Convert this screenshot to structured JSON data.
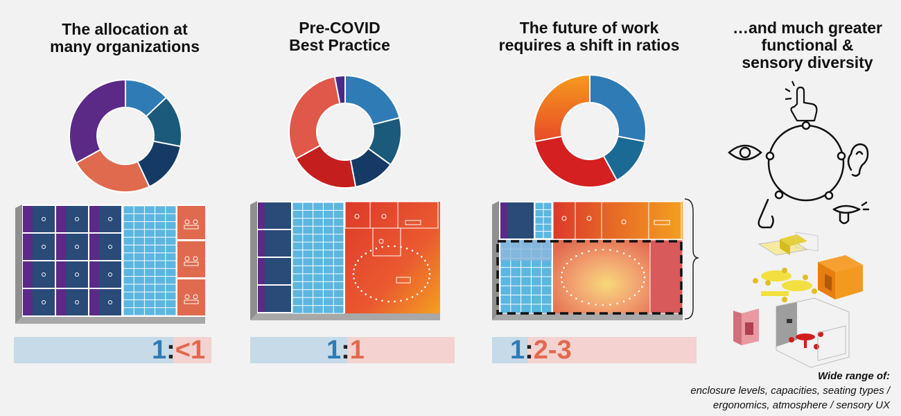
{
  "panels": [
    {
      "title": "The allocation at\nmany organizations",
      "ratio": {
        "left": "1",
        "sep": ":",
        "right": "<1"
      },
      "donut": [
        {
          "value": 13,
          "color": "#2f7bb5"
        },
        {
          "value": 15,
          "color": "#1b5a7a"
        },
        {
          "value": 15,
          "color": "#163a66"
        },
        {
          "value": 24,
          "color": "#e06a4e"
        },
        {
          "value": 33,
          "color": "#5b2a86"
        }
      ]
    },
    {
      "title": "Pre-COVID\nBest Practice",
      "ratio": {
        "left": "1",
        "sep": ":",
        "right": "1"
      },
      "donut": [
        {
          "value": 21,
          "color": "#2f7bb5"
        },
        {
          "value": 14,
          "color": "#1b5a7a"
        },
        {
          "value": 12,
          "color": "#163a66"
        },
        {
          "value": 20,
          "color": "#c41e1e"
        },
        {
          "value": 30,
          "color": "#e0584a"
        },
        {
          "value": 3,
          "color": "#4a2a86"
        }
      ]
    },
    {
      "title": "The future of work\nrequires a shift in ratios",
      "ratio": {
        "left": "1",
        "sep": ":",
        "right": "2-3"
      },
      "donut": [
        {
          "value": 28,
          "color": "#2f7bb5"
        },
        {
          "value": 14,
          "color": "#1b6a96"
        },
        {
          "value": 30,
          "color": "#d42020"
        },
        {
          "value": 28,
          "color": "#f39a1e"
        }
      ]
    }
  ],
  "diversity": {
    "title": "…and much greater\nfunctional &\nsensory diversity",
    "caption_head": "Wide range of:",
    "caption_line1": "enclosure levels, capacities, seating types /",
    "caption_line2": "ergonomics, atmosphere / sensory UX"
  },
  "colors": {
    "purple": "#5b2a86",
    "navy": "#2a4a78",
    "light_blue": "#5bb6e0",
    "coral": "#e06a4e",
    "orange": "#f39a1e",
    "red": "#c41e1e"
  }
}
